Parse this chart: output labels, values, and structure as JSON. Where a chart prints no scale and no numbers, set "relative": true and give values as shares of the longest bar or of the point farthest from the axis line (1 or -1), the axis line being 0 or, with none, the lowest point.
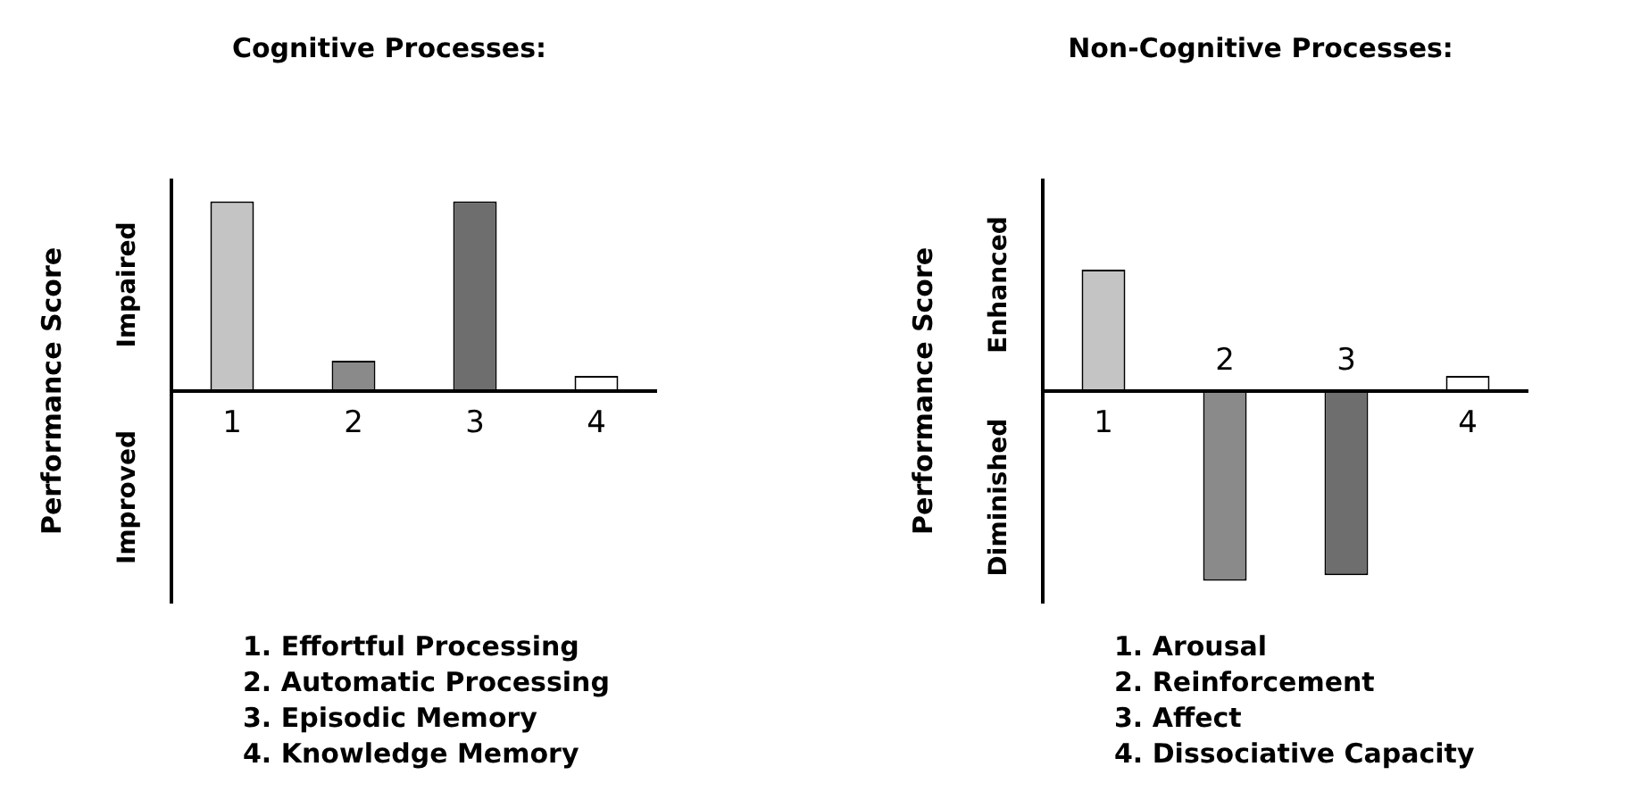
{
  "chart_data": [
    {
      "type": "bar",
      "title": "Cognitive Processes:",
      "ylabel": "Performance Score",
      "categories": [
        "1",
        "2",
        "3",
        "4"
      ],
      "values": [
        1,
        0.16,
        1,
        0.08
      ],
      "colors": [
        "#c4c4c4",
        "#8a8a8a",
        "#6e6e6e",
        "#ffffff"
      ],
      "relative": true,
      "annotations": [
        "Impaired",
        "Improved",
        "1. Effortful Processing",
        "2. Automatic Processing",
        "3. Episodic Memory",
        "4. Knowledge Memory"
      ]
    },
    {
      "type": "bar",
      "title": "Non-Cognitive Processes:",
      "ylabel": "Performance Score",
      "categories": [
        "1",
        "2",
        "3",
        "4"
      ],
      "values": [
        0.64,
        -1,
        -0.97,
        0.08
      ],
      "colors": [
        "#c4c4c4",
        "#8a8a8a",
        "#6e6e6e",
        "#ffffff"
      ],
      "relative": true,
      "annotations": [
        "Enhanced",
        "Diminished",
        "1. Arousal",
        "2. Reinforcement",
        "3. Affect",
        "4. Dissociative Capacity"
      ]
    }
  ]
}
